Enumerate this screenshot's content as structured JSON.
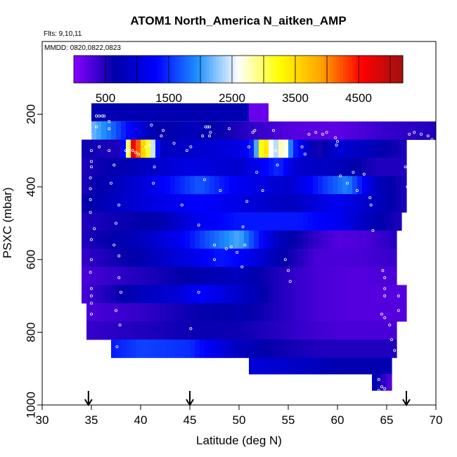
{
  "chart_data": {
    "type": "heatmap",
    "title": "ATOM1 North_America N_aitken_AMP",
    "subtitle_flights": "Flts: 9,10,11",
    "subtitle_dates": "MMDD: 0820,0822,0823",
    "xlabel": "Latitude (deg N)",
    "ylabel": "PSXC (mbar)",
    "xlim": [
      30,
      70
    ],
    "ylim": [
      1000,
      0
    ],
    "x_ticks": [
      "30",
      "35",
      "40",
      "45",
      "50",
      "55",
      "60",
      "65",
      "70"
    ],
    "y_ticks": [
      "200",
      "400",
      "600",
      "800",
      "1000"
    ],
    "colorbar": {
      "min": 0,
      "max": 5200,
      "ticks": [
        "500",
        "1500",
        "2500",
        "3500",
        "4500"
      ],
      "stops": [
        "#8800ff",
        "#0000aa",
        "#0000ff",
        "#1e90ff",
        "#ffffff",
        "#ffff00",
        "#ffa500",
        "#ff0000",
        "#a01010"
      ]
    },
    "markers_lat": [
      34.7,
      45,
      67
    ],
    "pressure_bins": [
      {
        "p0": 170,
        "p1": 220,
        "lat0": 35,
        "lat1": 51,
        "value": 700,
        "extra": [
          {
            "lat0": 51,
            "lat1": 53,
            "value": 150
          }
        ]
      },
      {
        "p0": 220,
        "p1": 270,
        "lat0": 35,
        "lat1": 70,
        "profile": [
          [
            35,
            2200
          ],
          [
            37,
            1800
          ],
          [
            40,
            1000
          ],
          [
            42,
            600
          ],
          [
            45,
            800
          ],
          [
            50,
            500
          ],
          [
            55,
            250
          ],
          [
            60,
            200
          ],
          [
            65,
            400
          ],
          [
            70,
            500
          ]
        ]
      },
      {
        "p0": 270,
        "p1": 320,
        "lat0": 34,
        "lat1": 67,
        "profile": [
          [
            34,
            600
          ],
          [
            38,
            500
          ],
          [
            39.3,
            4800
          ],
          [
            40.2,
            3600
          ],
          [
            41,
            3000
          ],
          [
            42,
            800
          ],
          [
            48,
            1000
          ],
          [
            50,
            1100
          ],
          [
            51.5,
            1500
          ],
          [
            52.5,
            3800
          ],
          [
            53.5,
            2200
          ],
          [
            54.5,
            3000
          ],
          [
            55.5,
            1500
          ],
          [
            58,
            500
          ],
          [
            60,
            1000
          ],
          [
            63,
            800
          ],
          [
            67,
            500
          ]
        ]
      },
      {
        "p0": 320,
        "p1": 370,
        "lat0": 34,
        "lat1": 67,
        "profile": [
          [
            34,
            500
          ],
          [
            40,
            800
          ],
          [
            45,
            1100
          ],
          [
            50,
            900
          ],
          [
            54,
            1500
          ],
          [
            56,
            900
          ],
          [
            60,
            800
          ],
          [
            64,
            500
          ],
          [
            67,
            500
          ]
        ]
      },
      {
        "p0": 370,
        "p1": 420,
        "lat0": 34,
        "lat1": 67,
        "profile": [
          [
            34,
            500
          ],
          [
            40,
            1000
          ],
          [
            46,
            1700
          ],
          [
            50,
            1200
          ],
          [
            55,
            900
          ],
          [
            59,
            1600
          ],
          [
            61,
            1900
          ],
          [
            64,
            800
          ],
          [
            67,
            500
          ]
        ]
      },
      {
        "p0": 420,
        "p1": 470,
        "lat0": 34,
        "lat1": 67,
        "profile": [
          [
            34,
            600
          ],
          [
            40,
            1000
          ],
          [
            46,
            1300
          ],
          [
            50,
            1100
          ],
          [
            55,
            800
          ],
          [
            60,
            1200
          ],
          [
            64,
            800
          ],
          [
            67,
            500
          ]
        ]
      },
      {
        "p0": 470,
        "p1": 520,
        "lat0": 34,
        "lat1": 66.5,
        "profile": [
          [
            34,
            500
          ],
          [
            42,
            700
          ],
          [
            46,
            1200
          ],
          [
            50,
            1400
          ],
          [
            56,
            1400
          ],
          [
            60,
            1200
          ],
          [
            64,
            700
          ],
          [
            66.5,
            500
          ]
        ]
      },
      {
        "p0": 520,
        "p1": 570,
        "lat0": 34,
        "lat1": 66,
        "profile": [
          [
            34,
            500
          ],
          [
            40,
            800
          ],
          [
            44,
            1200
          ],
          [
            47,
            1700
          ],
          [
            50,
            2100
          ],
          [
            52,
            1400
          ],
          [
            54,
            800
          ],
          [
            58,
            400
          ],
          [
            60,
            250
          ],
          [
            63,
            300
          ],
          [
            66,
            500
          ]
        ]
      },
      {
        "p0": 570,
        "p1": 620,
        "lat0": 34,
        "lat1": 66,
        "profile": [
          [
            34,
            400
          ],
          [
            40,
            700
          ],
          [
            45,
            1100
          ],
          [
            48,
            1400
          ],
          [
            50,
            1300
          ],
          [
            54,
            700
          ],
          [
            58,
            300
          ],
          [
            62,
            300
          ],
          [
            66,
            400
          ]
        ]
      },
      {
        "p0": 620,
        "p1": 670,
        "lat0": 34,
        "lat1": 66,
        "profile": [
          [
            34,
            300
          ],
          [
            40,
            500
          ],
          [
            46,
            700
          ],
          [
            50,
            800
          ],
          [
            54,
            500
          ],
          [
            58,
            300
          ],
          [
            62,
            250
          ],
          [
            66,
            300
          ]
        ]
      },
      {
        "p0": 670,
        "p1": 720,
        "lat0": 34,
        "lat1": 67,
        "profile": [
          [
            34,
            300
          ],
          [
            40,
            800
          ],
          [
            44,
            1000
          ],
          [
            46,
            1300
          ],
          [
            50,
            900
          ],
          [
            54,
            500
          ],
          [
            58,
            300
          ],
          [
            62,
            250
          ],
          [
            67,
            250
          ]
        ]
      },
      {
        "p0": 720,
        "p1": 770,
        "lat0": 34.5,
        "lat1": 67,
        "profile": [
          [
            34.5,
            300
          ],
          [
            40,
            400
          ],
          [
            45,
            600
          ],
          [
            50,
            700
          ],
          [
            54,
            500
          ],
          [
            58,
            300
          ],
          [
            62,
            250
          ],
          [
            67,
            250
          ]
        ]
      },
      {
        "p0": 770,
        "p1": 820,
        "lat0": 34.5,
        "lat1": 66,
        "profile": [
          [
            34.5,
            400
          ],
          [
            40,
            500
          ],
          [
            45,
            600
          ],
          [
            50,
            600
          ],
          [
            56,
            400
          ],
          [
            60,
            300
          ],
          [
            66,
            300
          ]
        ]
      },
      {
        "p0": 820,
        "p1": 870,
        "lat0": 37,
        "lat1": 66,
        "profile": [
          [
            37,
            1400
          ],
          [
            40,
            1600
          ],
          [
            45,
            1500
          ],
          [
            50,
            800
          ],
          [
            54,
            600
          ],
          [
            58,
            500
          ],
          [
            62,
            500
          ],
          [
            66,
            500
          ]
        ]
      },
      {
        "p0": 870,
        "p1": 915,
        "lat0": 51,
        "lat1": 65.5,
        "profile": [
          [
            51,
            1000
          ],
          [
            55,
            900
          ],
          [
            60,
            700
          ],
          [
            65.5,
            700
          ]
        ]
      },
      {
        "p0": 915,
        "p1": 960,
        "lat0": 63.5,
        "lat1": 65.5,
        "profile": [
          [
            63.5,
            800
          ],
          [
            65.5,
            200
          ]
        ]
      }
    ],
    "samples": [
      [
        35.5,
        205
      ],
      [
        35.8,
        205
      ],
      [
        36.1,
        205
      ],
      [
        36.3,
        205
      ],
      [
        36.8,
        220
      ],
      [
        34.9,
        255
      ],
      [
        34.9,
        265
      ],
      [
        35.5,
        235
      ],
      [
        35.8,
        290
      ],
      [
        35.0,
        300
      ],
      [
        35.0,
        330
      ],
      [
        35.0,
        345
      ],
      [
        34.9,
        375
      ],
      [
        34.9,
        405
      ],
      [
        34.9,
        435
      ],
      [
        34.9,
        470
      ],
      [
        35.3,
        515
      ],
      [
        35.0,
        545
      ],
      [
        35.0,
        600
      ],
      [
        34.9,
        635
      ],
      [
        35.0,
        680
      ],
      [
        35.0,
        700
      ],
      [
        35.0,
        720
      ],
      [
        35.0,
        750
      ],
      [
        36.8,
        240
      ],
      [
        36.8,
        300
      ],
      [
        37.3,
        340
      ],
      [
        37.0,
        390
      ],
      [
        37.8,
        450
      ],
      [
        37.5,
        500
      ],
      [
        37.3,
        560
      ],
      [
        37.8,
        590
      ],
      [
        37.8,
        650
      ],
      [
        38.0,
        690
      ],
      [
        37.5,
        740
      ],
      [
        37.9,
        780
      ],
      [
        37.6,
        840
      ],
      [
        38.5,
        300
      ],
      [
        38.8,
        300
      ],
      [
        39.2,
        300
      ],
      [
        39.5,
        305
      ],
      [
        39.8,
        310
      ],
      [
        40.5,
        290
      ],
      [
        40.9,
        285
      ],
      [
        41.1,
        230
      ],
      [
        42.3,
        245
      ],
      [
        42.1,
        260
      ],
      [
        41.4,
        345
      ],
      [
        41.3,
        390
      ],
      [
        43.4,
        280
      ],
      [
        45.1,
        290
      ],
      [
        44.7,
        300
      ],
      [
        44.2,
        450
      ],
      [
        45.9,
        505
      ],
      [
        46.6,
        235
      ],
      [
        46.8,
        235
      ],
      [
        47.0,
        235
      ],
      [
        47.1,
        250
      ],
      [
        47.0,
        260
      ],
      [
        49.0,
        240
      ],
      [
        46.5,
        380
      ],
      [
        48.1,
        410
      ],
      [
        45.9,
        690
      ],
      [
        47.5,
        600
      ],
      [
        45.1,
        790
      ],
      [
        46.3,
        260
      ],
      [
        47.5,
        560
      ],
      [
        48.7,
        570
      ],
      [
        49.2,
        565
      ],
      [
        49.8,
        580
      ],
      [
        50.8,
        440
      ],
      [
        50.4,
        510
      ],
      [
        50.6,
        560
      ],
      [
        50.3,
        620
      ],
      [
        51.6,
        245
      ],
      [
        51.4,
        250
      ],
      [
        51.0,
        290
      ],
      [
        51.8,
        360
      ],
      [
        52.4,
        410
      ],
      [
        53.5,
        245
      ],
      [
        53.7,
        300
      ],
      [
        53.9,
        340
      ],
      [
        54.7,
        600
      ],
      [
        55.0,
        630
      ],
      [
        55.2,
        660
      ],
      [
        56.4,
        290
      ],
      [
        56.7,
        310
      ],
      [
        57.1,
        255
      ],
      [
        57.8,
        250
      ],
      [
        58.5,
        255
      ],
      [
        58.9,
        250
      ],
      [
        59.8,
        265
      ],
      [
        60.0,
        275
      ],
      [
        59.9,
        285
      ],
      [
        60.3,
        370
      ],
      [
        61.0,
        390
      ],
      [
        61.6,
        360
      ],
      [
        62.7,
        365
      ],
      [
        62.0,
        410
      ],
      [
        63.3,
        430
      ],
      [
        63.4,
        450
      ],
      [
        63.6,
        520
      ],
      [
        64.6,
        630
      ],
      [
        64.8,
        650
      ],
      [
        64.8,
        680
      ],
      [
        64.8,
        700
      ],
      [
        64.5,
        750
      ],
      [
        64.8,
        760
      ],
      [
        65.3,
        780
      ],
      [
        65.5,
        820
      ],
      [
        65.8,
        850
      ],
      [
        66.2,
        880
      ],
      [
        67.3,
        255
      ],
      [
        67.8,
        250
      ],
      [
        68.5,
        255
      ],
      [
        69.2,
        260
      ],
      [
        69.6,
        270
      ],
      [
        66.9,
        345
      ],
      [
        67.3,
        360
      ],
      [
        67.1,
        400
      ],
      [
        67.8,
        475
      ],
      [
        67.3,
        500
      ],
      [
        66.6,
        540
      ],
      [
        66.6,
        570
      ],
      [
        66.6,
        610
      ],
      [
        66.3,
        660
      ],
      [
        66.2,
        700
      ],
      [
        66.2,
        740
      ],
      [
        64.2,
        930
      ],
      [
        64.5,
        950
      ],
      [
        64.8,
        955
      ],
      [
        64.2,
        960
      ]
    ]
  }
}
